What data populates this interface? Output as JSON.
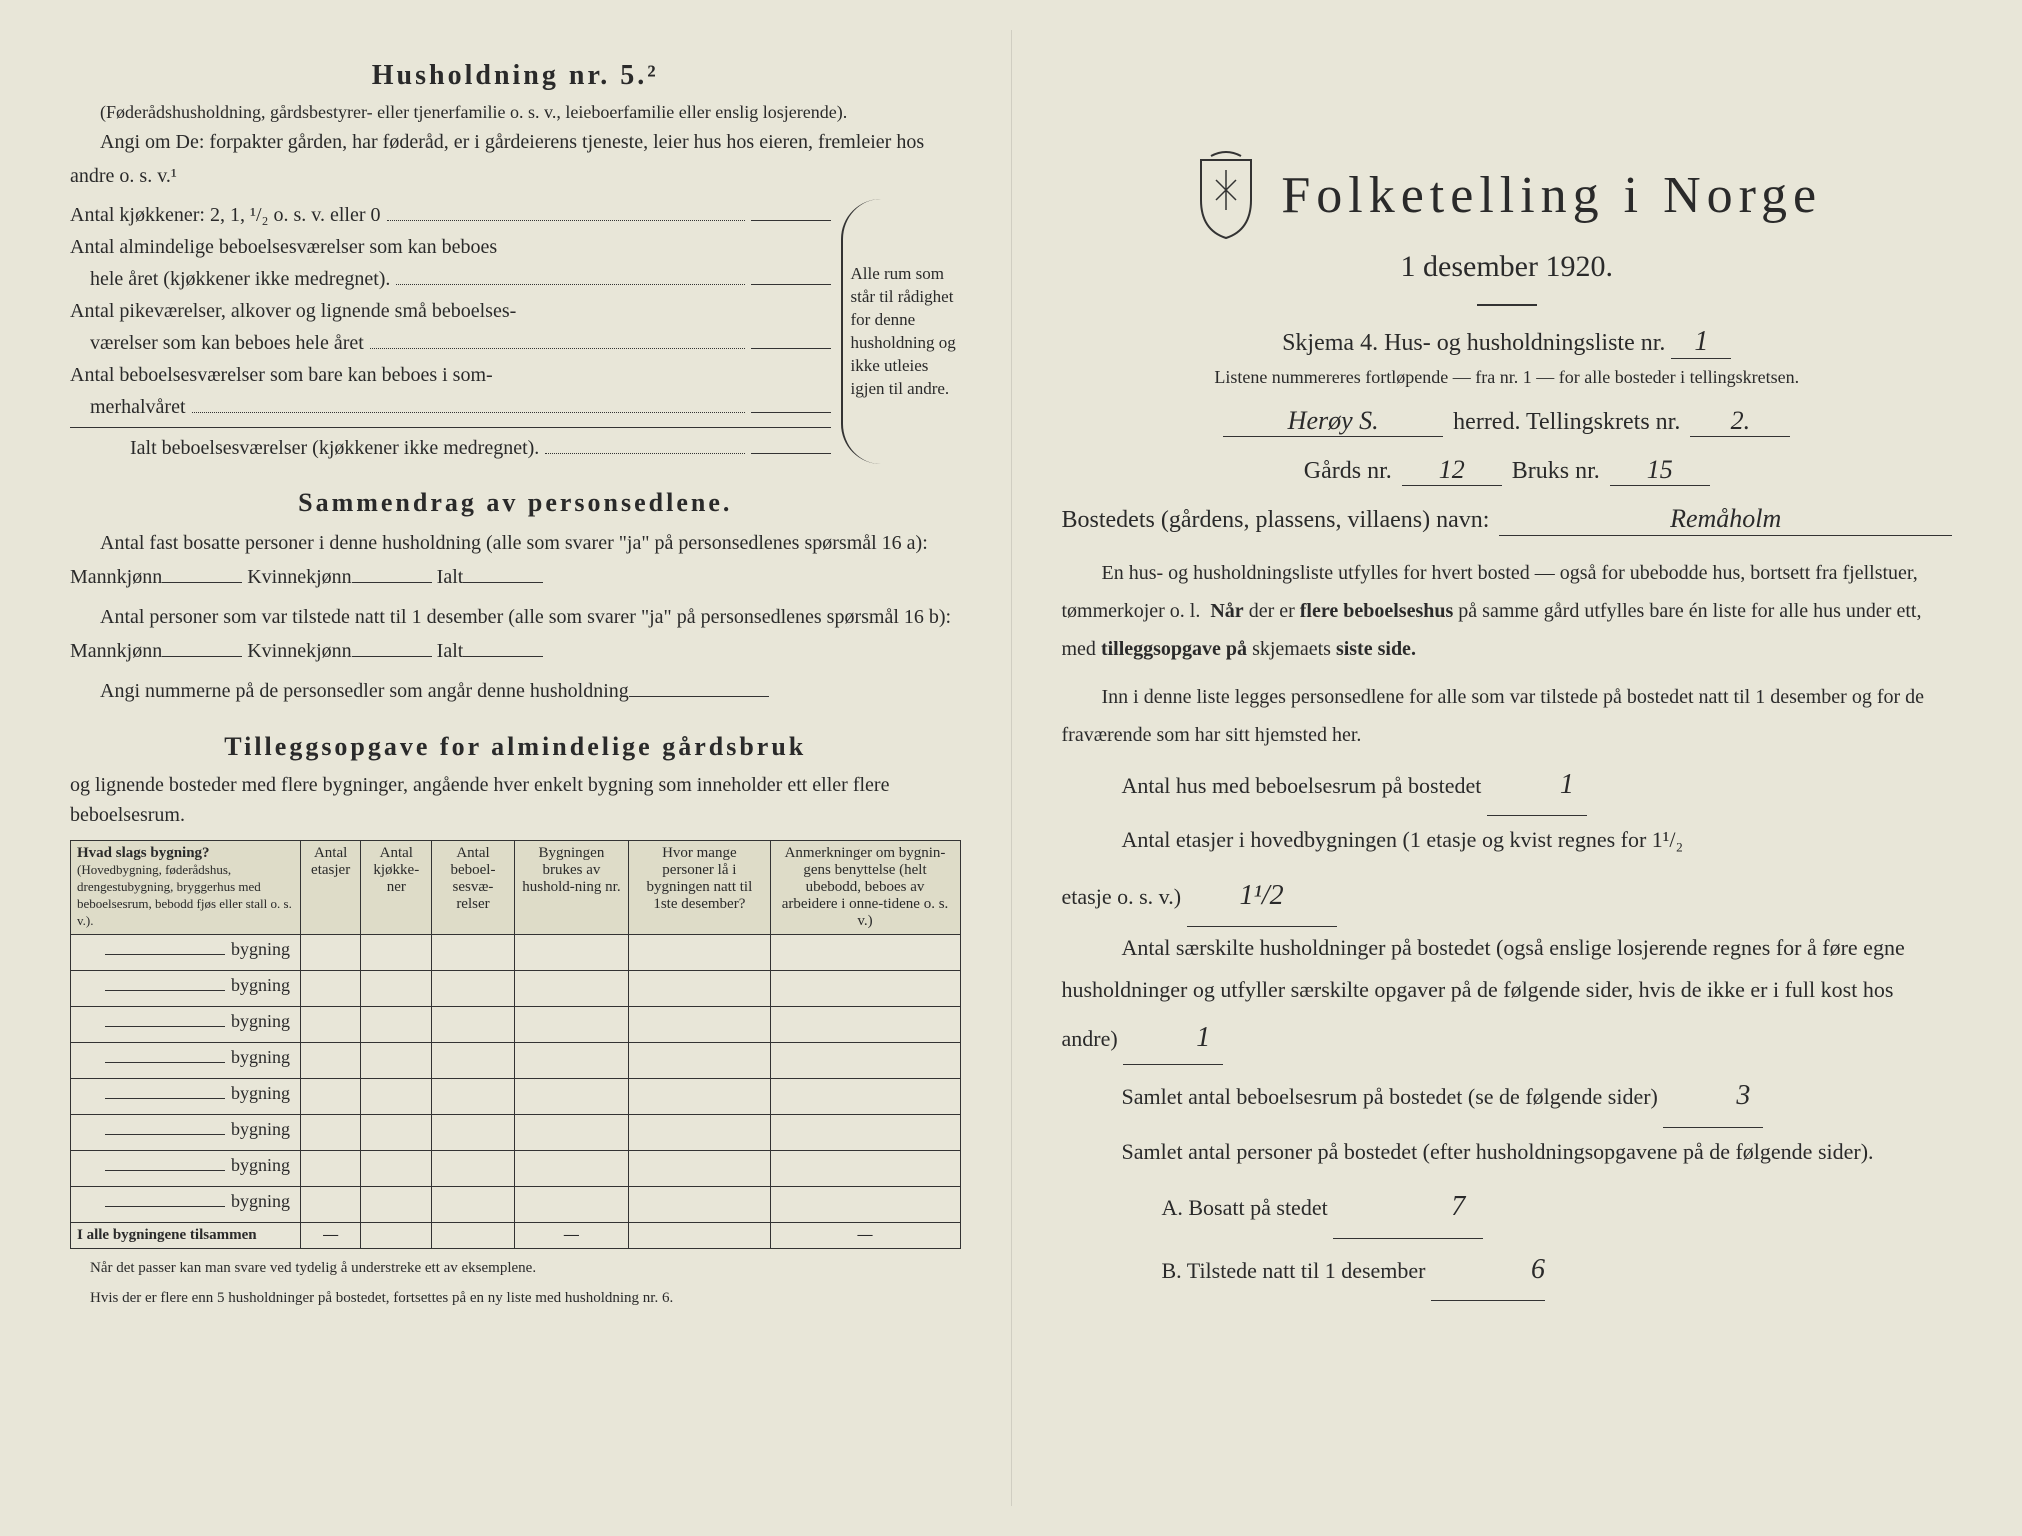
{
  "left": {
    "husholdning_title": "Husholdning nr. 5.²",
    "husholdning_sub": "(Føderådshusholdning, gårdsbestyrer- eller tjenerfamilie o. s. v., leieboerfamilie eller enslig losjerende).",
    "angi_om": "Angi om De: forpakter gården, har føderåd, er i gårdeierens tjeneste, leier hus hos eieren, fremleier hos andre o. s. v.¹",
    "kjokken_label": "Antal kjøkkener: 2, 1, ¹/₂ o. s. v. eller 0",
    "alm_label1": "Antal almindelige beboelsesværelser som kan beboes",
    "alm_label2": "hele året (kjøkkener ikke medregnet).",
    "pike_label1": "Antal pikeværelser, alkover og lignende små beboelses-",
    "pike_label2": "værelser som kan beboes hele året",
    "sommer_label1": "Antal beboelsesværelser som bare kan beboes i som-",
    "sommer_label2": "merhalvåret",
    "ialt_label": "Ialt beboelsesværelser (kjøkkener ikke medregnet).",
    "brace_text": "Alle rum som står til rådighet for denne husholdning og ikke utleies igjen til andre.",
    "sammendrag_title": "Sammendrag av personsedlene.",
    "fast_bosatte": "Antal fast bosatte personer i denne husholdning (alle som svarer \"ja\" på personsedlenes spørsmål 16 a): Mannkjønn",
    "kvinn": "Kvinnekjønn",
    "ialt": "Ialt",
    "tilstede": "Antal personer som var tilstede natt til 1 desember (alle som svarer \"ja\" på personsedlenes spørsmål 16 b): Mannkjønn",
    "angi_num": "Angi nummerne på de personsedler som angår denne husholdning",
    "tillegg_title": "Tilleggsopgave for almindelige gårdsbruk",
    "tillegg_sub": "og lignende bosteder med flere bygninger, angående hver enkelt bygning som inneholder ett eller flere beboelsesrum.",
    "th1": "Hvad slags bygning?",
    "th1_sub": "(Hovedbygning, føderådshus, drengestubygning, bryggerhus med beboelsesrum, bebodd fjøs eller stall o. s. v.).",
    "th2": "Antal etasjer",
    "th3": "Antal kjøkke-ner",
    "th4": "Antal beboel-sesvæ-relser",
    "th5": "Bygningen brukes av hushold-ning nr.",
    "th6": "Hvor mange personer lå i bygningen natt til 1ste desember?",
    "th7": "Anmerkninger om bygnin-gens benyttelse (helt ubebodd, beboes av arbeidere i onne-tidene o. s. v.)",
    "bygning_suffix": "bygning",
    "sum_label": "I alle bygningene tilsammen",
    "footnote1": "Når det passer kan man svare ved tydelig å understreke ett av eksemplene.",
    "footnote2": "Hvis der er flere enn 5 husholdninger på bostedet, fortsettes på en ny liste med husholdning nr. 6."
  },
  "right": {
    "main_title": "Folketelling i Norge",
    "subtitle": "1 desember 1920.",
    "skjema": "Skjema 4.  Hus- og husholdningsliste nr.",
    "skjema_val": "1",
    "listene": "Listene nummereres fortløpende — fra nr. 1 — for alle bosteder i tellingskretsen.",
    "herred_val": "Herøy S.",
    "herred_suffix": "herred.  Tellingskrets nr.",
    "tellingskrets_val": "2.",
    "gards_label": "Gårds nr.",
    "gards_val": "12",
    "bruks_label": "Bruks nr.",
    "bruks_val": "15",
    "bosted_label": "Bostedets (gårdens, plassens, villaens) navn:",
    "bosted_val": "Remåholm",
    "para1": "En hus- og husholdningsliste utfylles for hvert bosted — også for ubebodde hus, bortsett fra fjellstuer, tømmerkojer o. l.  Når der er flere beboelseshus på samme gård utfylles bare én liste for alle hus under ett, med tilleggsopgave på skjemaets siste side.",
    "para2": "Inn i denne liste legges personsedlene for alle som var tilstede på bostedet natt til 1 desember og for de fraværende som har sitt hjemsted her.",
    "q1": "Antal hus med beboelsesrum på bostedet",
    "q1_val": "1",
    "q2a": "Antal etasjer i hovedbygningen (1 etasje og kvist regnes for 1¹/₂",
    "q2b": "etasje o. s. v.)",
    "q2_val": "1¹/2",
    "q3": "Antal særskilte husholdninger på bostedet (også enslige losjerende regnes for å føre egne husholdninger og utfyller særskilte opgaver på de følgende sider, hvis de ikke er i full kost hos andre)",
    "q3_val": "1",
    "q4": "Samlet antal beboelsesrum på bostedet (se de følgende sider)",
    "q4_val": "3",
    "q5": "Samlet antal personer på bostedet (efter husholdningsopgavene på de følgende sider).",
    "qA": "A.  Bosatt på stedet",
    "qA_val": "7",
    "qB": "B.  Tilstede natt til 1 desember",
    "qB_val": "6"
  }
}
